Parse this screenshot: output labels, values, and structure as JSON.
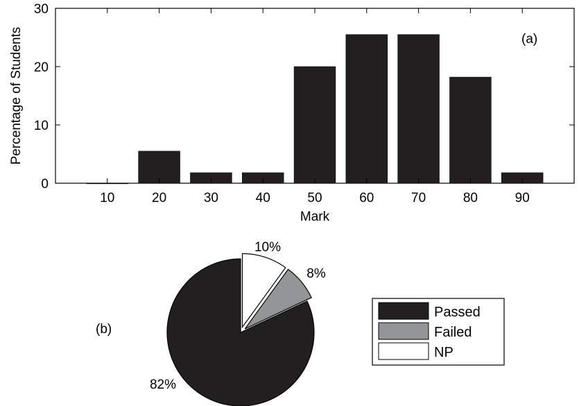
{
  "chart_data": [
    {
      "type": "bar",
      "annotation": "(a)",
      "xlabel": "Mark",
      "ylabel": "Percentage of Students",
      "categories": [
        "10",
        "20",
        "30",
        "40",
        "50",
        "60",
        "70",
        "80",
        "90"
      ],
      "values": [
        0,
        5.5,
        1.8,
        1.8,
        20,
        25.5,
        25.5,
        18.2,
        1.8
      ],
      "ylim": [
        0,
        30
      ],
      "yticks": [
        "0",
        "10",
        "20",
        "30"
      ],
      "xlim": [
        0,
        100
      ],
      "bar_color": "#231f20",
      "grid": false
    },
    {
      "type": "pie",
      "annotation": "(b)",
      "slices": [
        {
          "name": "Passed",
          "value": 82,
          "label": "82%",
          "color": "#231f20",
          "exploded": false
        },
        {
          "name": "Failed",
          "value": 8,
          "label": "8%",
          "color": "#939598",
          "exploded": true
        },
        {
          "name": "NP",
          "value": 10,
          "label": "10%",
          "color": "#ffffff",
          "exploded": true
        }
      ],
      "legend": [
        "Passed",
        "Failed",
        "NP"
      ],
      "legend_position": "right"
    }
  ]
}
